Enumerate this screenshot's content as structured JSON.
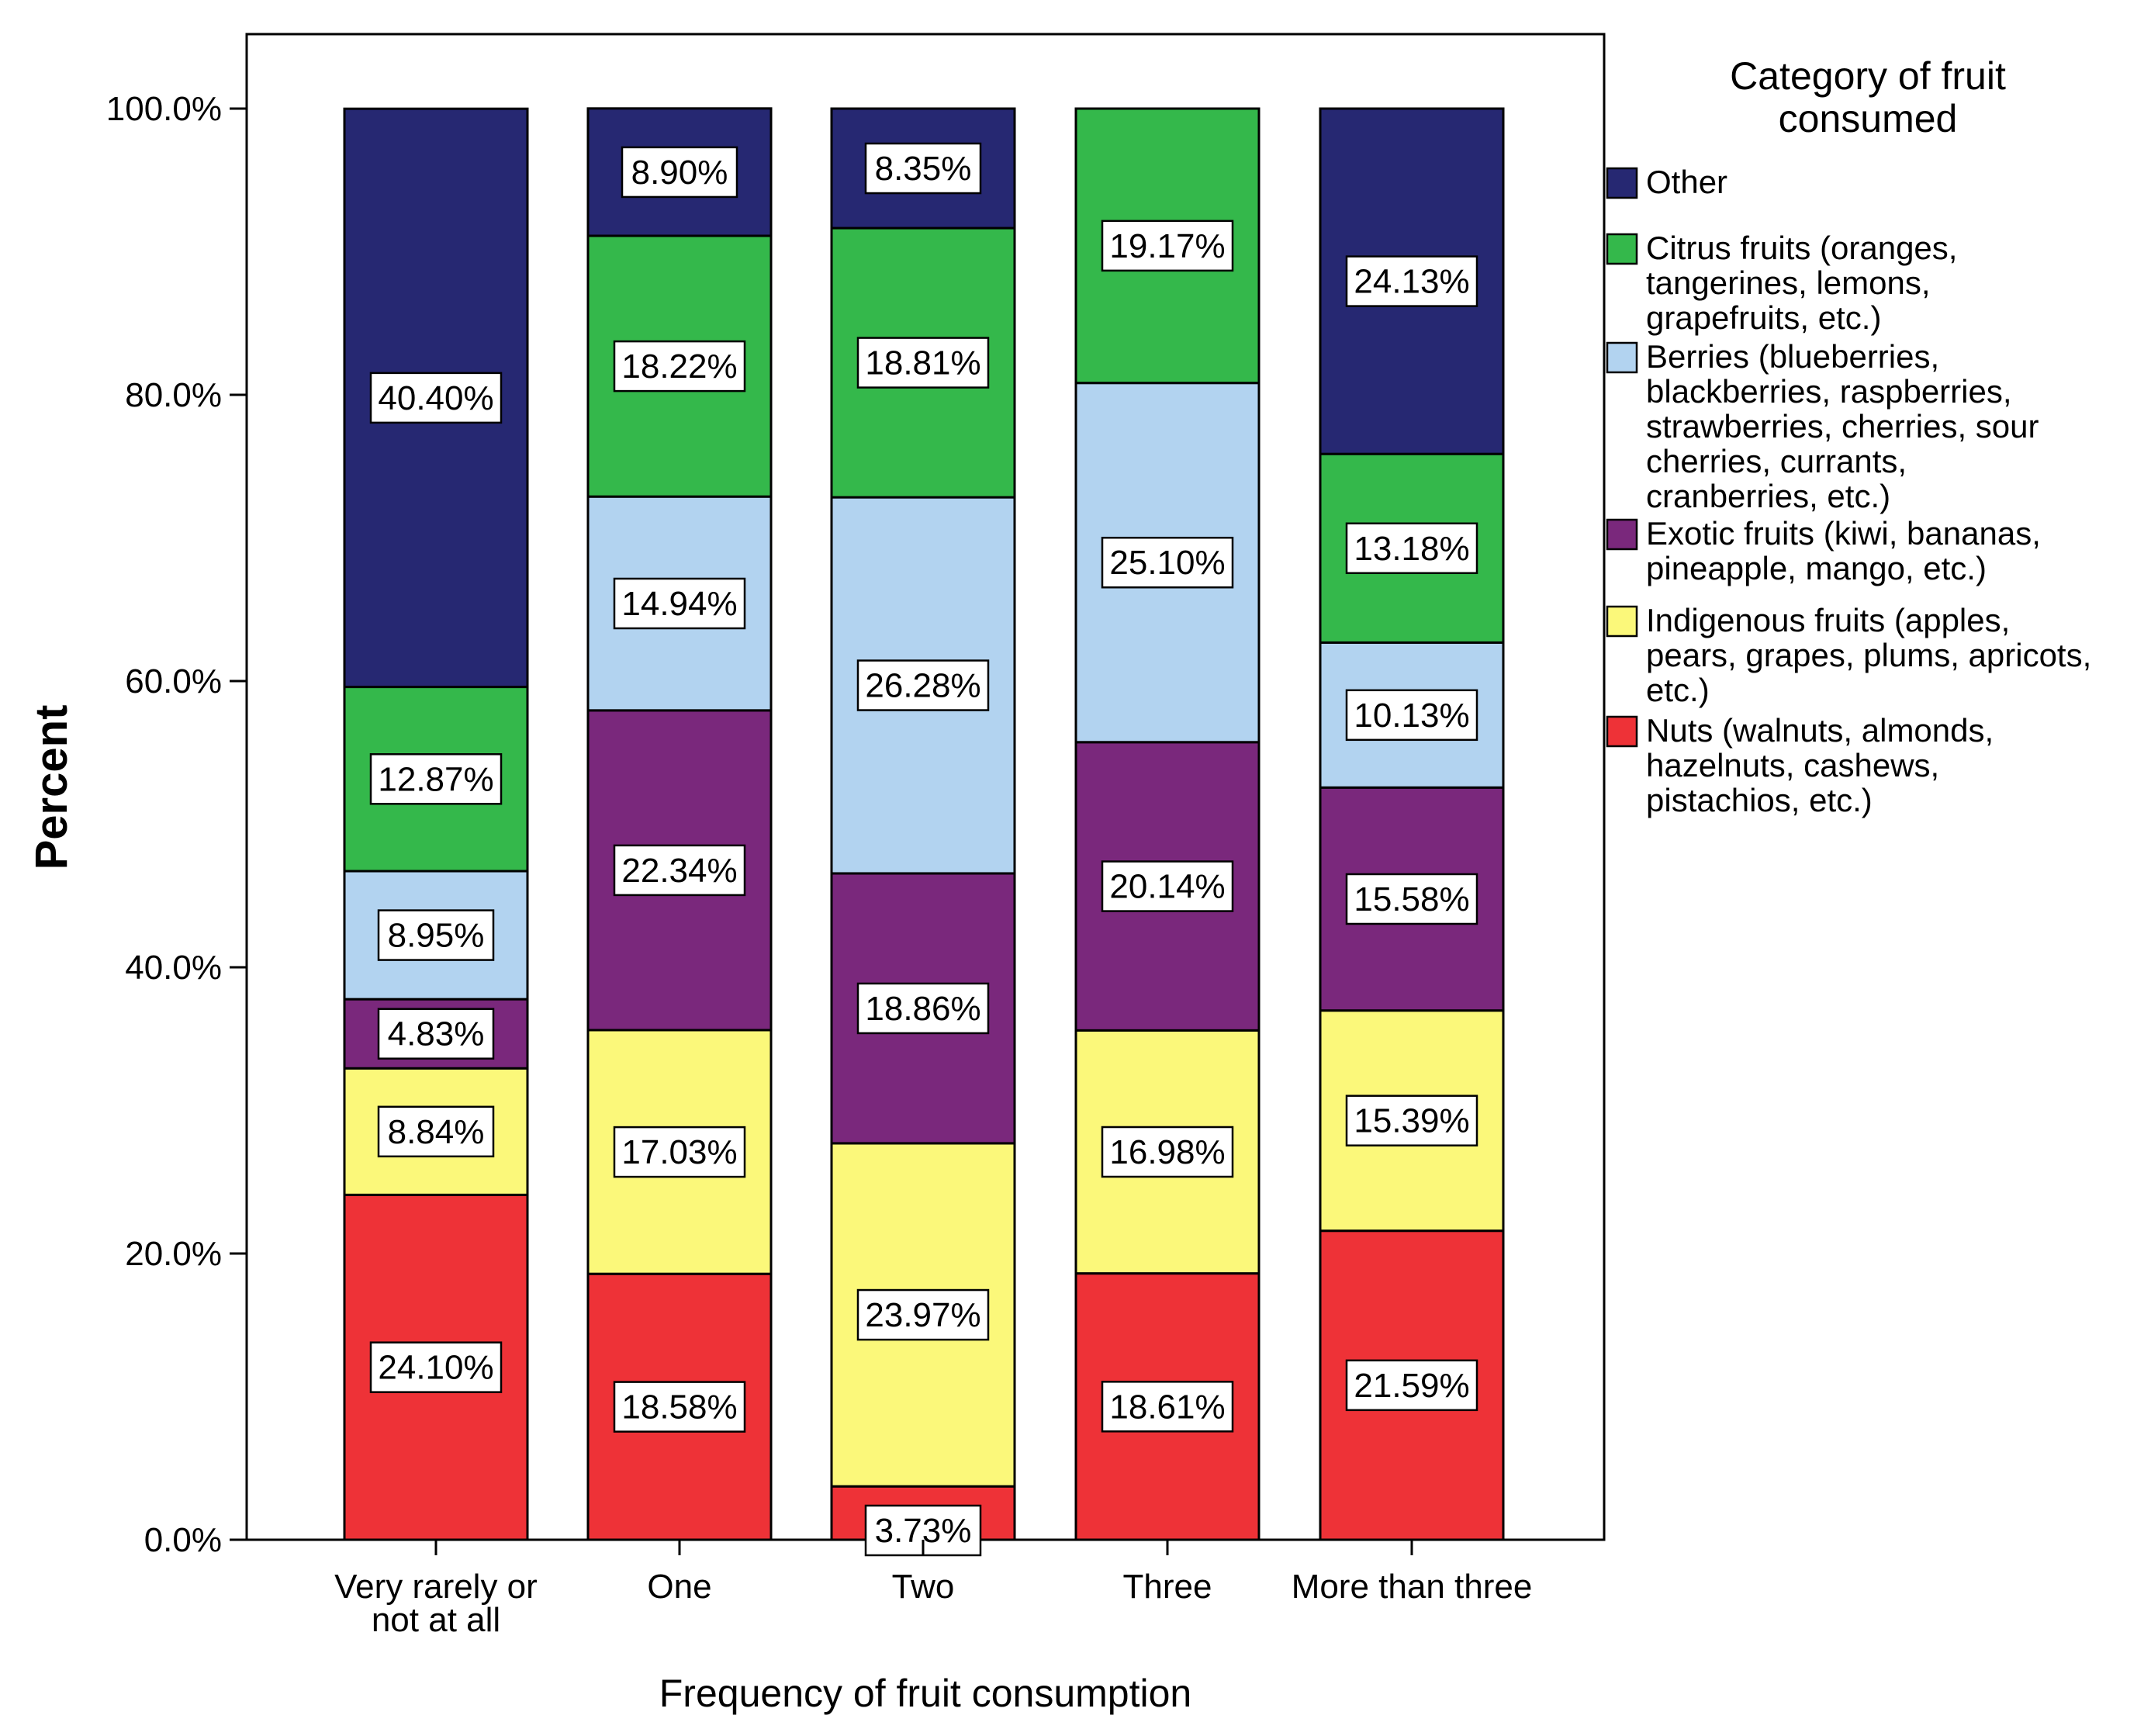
{
  "chart_data": {
    "type": "bar",
    "stacked": true,
    "title": "",
    "xlabel": "Frequency of fruit consumption",
    "ylabel": "Percent",
    "ylim": [
      0,
      100
    ],
    "yticks": [
      "0.0%",
      "20.0%",
      "40.0%",
      "60.0%",
      "80.0%",
      "100.0%"
    ],
    "ytick_values": [
      0,
      20,
      40,
      60,
      80,
      100
    ],
    "grid": false,
    "categories": [
      [
        "Very rarely or",
        "not at all"
      ],
      [
        "One"
      ],
      [
        "Two"
      ],
      [
        "Three"
      ],
      [
        "More than three"
      ]
    ],
    "legend": {
      "title": [
        "Category of fruit",
        "consumed"
      ],
      "position": "right"
    },
    "series": [
      {
        "name": [
          "Nuts (walnuts, almonds,",
          "hazelnuts, cashews,",
          "pistachios, etc.)"
        ],
        "color": "#ee3237",
        "values": [
          24.1,
          18.58,
          3.73,
          18.61,
          21.59
        ],
        "labels": [
          "24.10%",
          "18.58%",
          "3.73%",
          "18.61%",
          "21.59%"
        ]
      },
      {
        "name": [
          "Indigenous fruits (apples,",
          "pears, grapes, plums, apricots,",
          "etc.)"
        ],
        "color": "#fbf87a",
        "values": [
          8.84,
          17.03,
          23.97,
          16.98,
          15.39
        ],
        "labels": [
          "8.84%",
          "17.03%",
          "23.97%",
          "16.98%",
          "15.39%"
        ]
      },
      {
        "name": [
          "Exotic fruits (kiwi, bananas,",
          "pineapple, mango, etc.)"
        ],
        "color": "#7a287c",
        "values": [
          4.83,
          22.34,
          18.86,
          20.14,
          15.58
        ],
        "labels": [
          "4.83%",
          "22.34%",
          "18.86%",
          "20.14%",
          "15.58%"
        ]
      },
      {
        "name": [
          "Berries (blueberries,",
          "blackberries, raspberries,",
          "strawberries, cherries, sour",
          "cherries, currants,",
          "cranberries, etc.)"
        ],
        "color": "#b2d3f0",
        "values": [
          8.95,
          14.94,
          26.28,
          25.1,
          10.13
        ],
        "labels": [
          "8.95%",
          "14.94%",
          "26.28%",
          "25.10%",
          "10.13%"
        ]
      },
      {
        "name": [
          "Citrus fruits (oranges,",
          "tangerines, lemons,",
          "grapefruits, etc.)"
        ],
        "color": "#34b84b",
        "values": [
          12.87,
          18.22,
          18.81,
          19.17,
          13.18
        ],
        "labels": [
          "12.87%",
          "18.22%",
          "18.81%",
          "19.17%",
          "13.18%"
        ]
      },
      {
        "name": [
          "Other"
        ],
        "color": "#262872",
        "values": [
          40.4,
          8.9,
          8.35,
          0,
          24.13
        ],
        "labels": [
          "40.40%",
          "8.90%",
          "8.35%",
          "",
          "24.13%"
        ]
      }
    ]
  }
}
